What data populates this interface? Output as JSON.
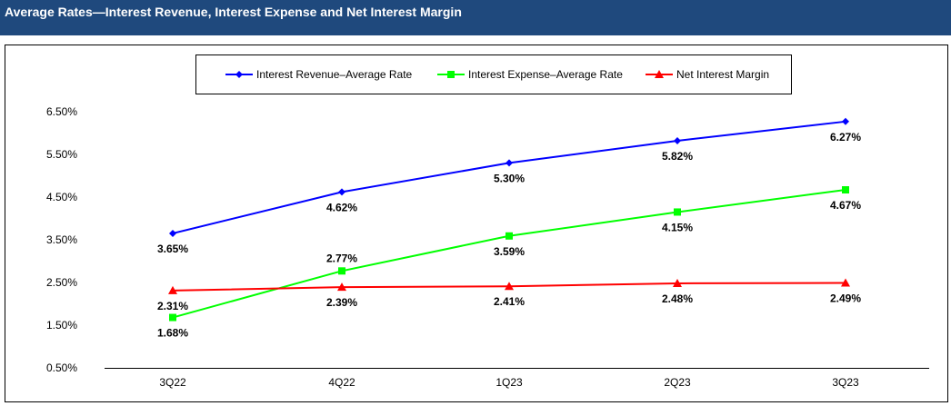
{
  "title": "Average Rates—Interest Revenue, Interest Expense and Net Interest Margin",
  "chart_data": {
    "type": "line",
    "categories": [
      "3Q22",
      "4Q22",
      "1Q23",
      "2Q23",
      "3Q23"
    ],
    "yticks": [
      "6.50%",
      "5.50%",
      "4.50%",
      "3.50%",
      "2.50%",
      "1.50%",
      "0.50%"
    ],
    "ylim": [
      0.5,
      6.5
    ],
    "grid": false,
    "legend": "top",
    "series": [
      {
        "name": "Interest Revenue–Average Rate",
        "values": [
          3.65,
          4.62,
          5.3,
          5.82,
          6.27
        ],
        "labels": [
          "3.65%",
          "4.62%",
          "5.30%",
          "5.82%",
          "6.27%"
        ],
        "color": "#0000FF",
        "marker": "diamond"
      },
      {
        "name": "Interest Expense–Average Rate",
        "values": [
          1.68,
          2.77,
          3.59,
          4.15,
          4.67
        ],
        "labels": [
          "1.68%",
          "2.77%",
          "3.59%",
          "4.15%",
          "4.67%"
        ],
        "color": "#00FF00",
        "marker": "square"
      },
      {
        "name": "Net Interest Margin",
        "values": [
          2.31,
          2.39,
          2.41,
          2.48,
          2.49
        ],
        "labels": [
          "2.31%",
          "2.39%",
          "2.41%",
          "2.48%",
          "2.49%"
        ],
        "color": "#FF0000",
        "marker": "triangle"
      }
    ]
  }
}
